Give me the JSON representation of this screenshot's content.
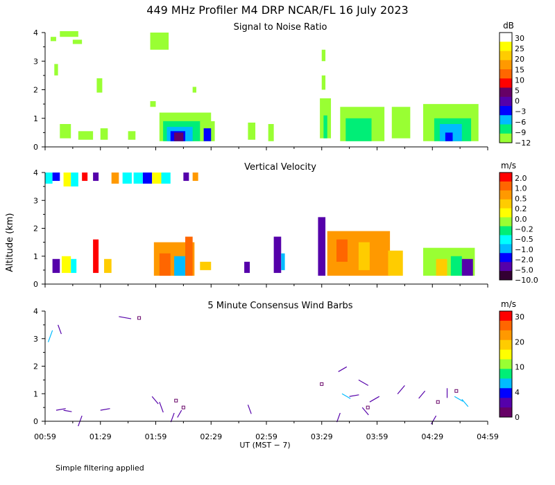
{
  "title": "449 MHz Profiler M4 DRP NCAR/FL 16 July 2023",
  "x_axis": {
    "label": "UT  (MST − 7)",
    "ticks": [
      "00:59",
      "01:29",
      "01:59",
      "02:29",
      "02:59",
      "03:29",
      "03:59",
      "04:29",
      "04:59"
    ]
  },
  "y_axis_label": "Altitude (km)",
  "y_ticks": [
    "0",
    "1",
    "2",
    "3",
    "4"
  ],
  "footnote": "Simple filtering applied",
  "chart_data": [
    {
      "type": "heatmap",
      "title": "Signal to Noise Ratio",
      "xlim": [
        0,
        240
      ],
      "ylim": [
        0,
        4
      ],
      "colorbar": {
        "unit": "dB",
        "labels": [
          "30",
          "25",
          "20",
          "15",
          "10",
          "5",
          "0",
          "−3",
          "−6",
          "−9",
          "−12"
        ],
        "colors": [
          "#ffffff",
          "#ffff00",
          "#ffcc00",
          "#ff9900",
          "#ff6600",
          "#ff0000",
          "#660066",
          "#5500aa",
          "#0000ff",
          "#00bbff",
          "#00ee77",
          "#99ff33"
        ]
      },
      "cells": [
        {
          "t": 3,
          "h": 3.7,
          "w": 3,
          "hh": 0.15,
          "c": "#99ff33"
        },
        {
          "t": 8,
          "h": 3.85,
          "w": 10,
          "hh": 0.2,
          "c": "#99ff33"
        },
        {
          "t": 15,
          "h": 3.6,
          "w": 5,
          "hh": 0.15,
          "c": "#99ff33"
        },
        {
          "t": 5,
          "h": 2.5,
          "w": 2,
          "hh": 0.4,
          "c": "#99ff33"
        },
        {
          "t": 28,
          "h": 1.9,
          "w": 3,
          "hh": 0.5,
          "c": "#99ff33"
        },
        {
          "t": 57,
          "h": 3.4,
          "w": 10,
          "hh": 0.6,
          "c": "#99ff33"
        },
        {
          "t": 80,
          "h": 1.9,
          "w": 2,
          "hh": 0.2,
          "c": "#99ff33"
        },
        {
          "t": 57,
          "h": 1.4,
          "w": 3,
          "hh": 0.2,
          "c": "#99ff33"
        },
        {
          "t": 150,
          "h": 2.0,
          "w": 2,
          "hh": 0.5,
          "c": "#99ff33"
        },
        {
          "t": 150,
          "h": 3.0,
          "w": 2,
          "hh": 0.4,
          "c": "#99ff33"
        },
        {
          "t": 8,
          "h": 0.3,
          "w": 6,
          "hh": 0.5,
          "c": "#99ff33"
        },
        {
          "t": 18,
          "h": 0.25,
          "w": 8,
          "hh": 0.3,
          "c": "#99ff33"
        },
        {
          "t": 30,
          "h": 0.25,
          "w": 4,
          "hh": 0.4,
          "c": "#99ff33"
        },
        {
          "t": 45,
          "h": 0.25,
          "w": 4,
          "hh": 0.3,
          "c": "#99ff33"
        },
        {
          "t": 62,
          "h": 0.2,
          "w": 28,
          "hh": 1.0,
          "c": "#99ff33"
        },
        {
          "t": 64,
          "h": 0.2,
          "w": 22,
          "hh": 0.7,
          "c": "#00ee77"
        },
        {
          "t": 66,
          "h": 0.2,
          "w": 14,
          "hh": 0.5,
          "c": "#00bbff"
        },
        {
          "t": 68,
          "h": 0.2,
          "w": 8,
          "hh": 0.35,
          "c": "#0000ff"
        },
        {
          "t": 70,
          "h": 0.2,
          "w": 5,
          "hh": 0.3,
          "c": "#660066"
        },
        {
          "t": 84,
          "h": 0.2,
          "w": 8,
          "hh": 0.7,
          "c": "#99ff33"
        },
        {
          "t": 86,
          "h": 0.2,
          "w": 4,
          "hh": 0.45,
          "c": "#0000ff"
        },
        {
          "t": 110,
          "h": 0.25,
          "w": 4,
          "hh": 0.6,
          "c": "#99ff33"
        },
        {
          "t": 121,
          "h": 0.2,
          "w": 3,
          "hh": 0.6,
          "c": "#99ff33"
        },
        {
          "t": 149,
          "h": 0.3,
          "w": 6,
          "hh": 1.4,
          "c": "#99ff33"
        },
        {
          "t": 151,
          "h": 0.3,
          "w": 2,
          "hh": 0.8,
          "c": "#00ee77"
        },
        {
          "t": 160,
          "h": 0.2,
          "w": 24,
          "hh": 1.2,
          "c": "#99ff33"
        },
        {
          "t": 163,
          "h": 0.2,
          "w": 14,
          "hh": 0.8,
          "c": "#00ee77"
        },
        {
          "t": 188,
          "h": 0.3,
          "w": 10,
          "hh": 1.1,
          "c": "#99ff33"
        },
        {
          "t": 205,
          "h": 0.2,
          "w": 30,
          "hh": 1.3,
          "c": "#99ff33"
        },
        {
          "t": 211,
          "h": 0.2,
          "w": 20,
          "hh": 0.8,
          "c": "#00ee77"
        },
        {
          "t": 214,
          "h": 0.2,
          "w": 12,
          "hh": 0.6,
          "c": "#00bbff"
        },
        {
          "t": 217,
          "h": 0.2,
          "w": 4,
          "hh": 0.3,
          "c": "#0000ff"
        }
      ]
    },
    {
      "type": "heatmap",
      "title": "Vertical Velocity",
      "xlim": [
        0,
        240
      ],
      "ylim": [
        0,
        4
      ],
      "colorbar": {
        "unit": "m/s",
        "labels": [
          "2.0",
          "1.0",
          "0.5",
          "0.2",
          "0.0",
          "−0.2",
          "−0.5",
          "−1.0",
          "−2.0",
          "−5.0",
          "−10.0"
        ],
        "colors": [
          "#ff0000",
          "#ff6600",
          "#ff9900",
          "#ffcc00",
          "#ffff00",
          "#99ff33",
          "#00ee77",
          "#00ffff",
          "#00bbff",
          "#0000ff",
          "#5500aa",
          "#330033"
        ]
      },
      "cells": [
        {
          "t": 0,
          "h": 3.6,
          "w": 4,
          "hh": 0.4,
          "c": "#00ffff"
        },
        {
          "t": 4,
          "h": 3.7,
          "w": 4,
          "hh": 0.3,
          "c": "#0000ff"
        },
        {
          "t": 10,
          "h": 3.5,
          "w": 4,
          "hh": 0.5,
          "c": "#ffff00"
        },
        {
          "t": 14,
          "h": 3.5,
          "w": 4,
          "hh": 0.5,
          "c": "#00ffff"
        },
        {
          "t": 20,
          "h": 3.7,
          "w": 3,
          "hh": 0.3,
          "c": "#ff0000"
        },
        {
          "t": 26,
          "h": 3.7,
          "w": 3,
          "hh": 0.3,
          "c": "#5500aa"
        },
        {
          "t": 36,
          "h": 3.6,
          "w": 4,
          "hh": 0.4,
          "c": "#ff9900"
        },
        {
          "t": 42,
          "h": 3.6,
          "w": 5,
          "hh": 0.4,
          "c": "#00ffff"
        },
        {
          "t": 48,
          "h": 3.6,
          "w": 5,
          "hh": 0.4,
          "c": "#00ffff"
        },
        {
          "t": 53,
          "h": 3.6,
          "w": 5,
          "hh": 0.4,
          "c": "#0000ff"
        },
        {
          "t": 58,
          "h": 3.6,
          "w": 5,
          "hh": 0.4,
          "c": "#ffff00"
        },
        {
          "t": 63,
          "h": 3.6,
          "w": 5,
          "hh": 0.4,
          "c": "#00ffff"
        },
        {
          "t": 75,
          "h": 3.7,
          "w": 3,
          "hh": 0.3,
          "c": "#5500aa"
        },
        {
          "t": 80,
          "h": 3.7,
          "w": 3,
          "hh": 0.3,
          "c": "#ff9900"
        },
        {
          "t": 4,
          "h": 0.4,
          "w": 4,
          "hh": 0.5,
          "c": "#5500aa"
        },
        {
          "t": 9,
          "h": 0.4,
          "w": 5,
          "hh": 0.6,
          "c": "#ffff00"
        },
        {
          "t": 14,
          "h": 0.4,
          "w": 3,
          "hh": 0.5,
          "c": "#00ffff"
        },
        {
          "t": 26,
          "h": 0.4,
          "w": 3,
          "hh": 1.2,
          "c": "#ff0000"
        },
        {
          "t": 32,
          "h": 0.4,
          "w": 4,
          "hh": 0.5,
          "c": "#ffcc00"
        },
        {
          "t": 59,
          "h": 0.3,
          "w": 22,
          "hh": 1.2,
          "c": "#ff9900"
        },
        {
          "t": 62,
          "h": 0.3,
          "w": 6,
          "hh": 0.8,
          "c": "#ff6600"
        },
        {
          "t": 70,
          "h": 0.3,
          "w": 6,
          "hh": 0.7,
          "c": "#00bbff"
        },
        {
          "t": 76,
          "h": 0.3,
          "w": 4,
          "hh": 1.4,
          "c": "#ff6600"
        },
        {
          "t": 84,
          "h": 0.5,
          "w": 6,
          "hh": 0.3,
          "c": "#ffcc00"
        },
        {
          "t": 108,
          "h": 0.4,
          "w": 3,
          "hh": 0.4,
          "c": "#5500aa"
        },
        {
          "t": 124,
          "h": 0.4,
          "w": 4,
          "hh": 1.3,
          "c": "#5500aa"
        },
        {
          "t": 128,
          "h": 0.5,
          "w": 2,
          "hh": 0.6,
          "c": "#00bbff"
        },
        {
          "t": 148,
          "h": 0.3,
          "w": 4,
          "hh": 2.1,
          "c": "#5500aa"
        },
        {
          "t": 153,
          "h": 0.3,
          "w": 34,
          "hh": 1.6,
          "c": "#ff9900"
        },
        {
          "t": 158,
          "h": 0.8,
          "w": 6,
          "hh": 0.8,
          "c": "#ff6600"
        },
        {
          "t": 170,
          "h": 0.5,
          "w": 6,
          "hh": 1.0,
          "c": "#ffcc00"
        },
        {
          "t": 186,
          "h": 0.3,
          "w": 8,
          "hh": 0.9,
          "c": "#ffcc00"
        },
        {
          "t": 205,
          "h": 0.3,
          "w": 28,
          "hh": 1.0,
          "c": "#99ff33"
        },
        {
          "t": 212,
          "h": 0.3,
          "w": 6,
          "hh": 0.6,
          "c": "#ffcc00"
        },
        {
          "t": 220,
          "h": 0.3,
          "w": 6,
          "hh": 0.7,
          "c": "#00ee77"
        },
        {
          "t": 226,
          "h": 0.3,
          "w": 6,
          "hh": 0.6,
          "c": "#5500aa"
        }
      ]
    },
    {
      "type": "scatter",
      "title": "5 Minute Consensus Wind Barbs",
      "xlim": [
        0,
        240
      ],
      "ylim": [
        0,
        4
      ],
      "colorbar": {
        "unit": "m/s",
        "labels": [
          "30",
          "20",
          "10",
          "4",
          "0"
        ],
        "colors": [
          "#ff0000",
          "#ff6600",
          "#ff9900",
          "#ffcc00",
          "#ffff00",
          "#99ff33",
          "#00ee77",
          "#00bbff",
          "#0000ff",
          "#5500aa",
          "#660066"
        ]
      },
      "barbs": [
        {
          "t": 4,
          "h": 3.3,
          "dir": 200,
          "len": 18,
          "c": "#00bbff"
        },
        {
          "t": 7,
          "h": 3.5,
          "dir": 160,
          "len": 14,
          "c": "#5500aa"
        },
        {
          "t": 40,
          "h": 3.8,
          "dir": 100,
          "len": 18,
          "c": "#5500aa"
        },
        {
          "t": 6,
          "h": 0.4,
          "dir": 80,
          "len": 14,
          "c": "#5500aa"
        },
        {
          "t": 10,
          "h": 0.4,
          "dir": 100,
          "len": 12,
          "c": "#5500aa"
        },
        {
          "t": 20,
          "h": 0.2,
          "dir": 200,
          "len": 16,
          "c": "#5500aa"
        },
        {
          "t": 30,
          "h": 0.4,
          "dir": 80,
          "len": 14,
          "c": "#5500aa"
        },
        {
          "t": 58,
          "h": 0.9,
          "dir": 140,
          "len": 14,
          "c": "#5500aa"
        },
        {
          "t": 62,
          "h": 0.7,
          "dir": 160,
          "len": 16,
          "c": "#5500aa"
        },
        {
          "t": 70,
          "h": 0.3,
          "dir": 200,
          "len": 14,
          "c": "#5500aa"
        },
        {
          "t": 74,
          "h": 0.4,
          "dir": 210,
          "len": 12,
          "c": "#5500aa"
        },
        {
          "t": 110,
          "h": 0.6,
          "dir": 160,
          "len": 14,
          "c": "#5500aa"
        },
        {
          "t": 159,
          "h": 1.8,
          "dir": 60,
          "len": 14,
          "c": "#5500aa"
        },
        {
          "t": 161,
          "h": 1.0,
          "dir": 120,
          "len": 14,
          "c": "#00bbff"
        },
        {
          "t": 165,
          "h": 0.9,
          "dir": 80,
          "len": 14,
          "c": "#5500aa"
        },
        {
          "t": 170,
          "h": 1.5,
          "dir": 120,
          "len": 16,
          "c": "#5500aa"
        },
        {
          "t": 176,
          "h": 0.7,
          "dir": 60,
          "len": 16,
          "c": "#5500aa"
        },
        {
          "t": 172,
          "h": 0.5,
          "dir": 140,
          "len": 14,
          "c": "#5500aa"
        },
        {
          "t": 160,
          "h": 0.3,
          "dir": 200,
          "len": 14,
          "c": "#5500aa"
        },
        {
          "t": 195,
          "h": 1.3,
          "dir": 220,
          "len": 16,
          "c": "#5500aa"
        },
        {
          "t": 206,
          "h": 1.1,
          "dir": 220,
          "len": 14,
          "c": "#5500aa"
        },
        {
          "t": 218,
          "h": 1.2,
          "dir": 180,
          "len": 14,
          "c": "#5500aa"
        },
        {
          "t": 222,
          "h": 0.9,
          "dir": 120,
          "len": 14,
          "c": "#00bbff"
        },
        {
          "t": 226,
          "h": 0.8,
          "dir": 140,
          "len": 14,
          "c": "#00bbff"
        },
        {
          "t": 212,
          "h": 0.2,
          "dir": 210,
          "len": 14,
          "c": "#5500aa"
        }
      ],
      "calm": [
        {
          "t": 51,
          "h": 3.75
        },
        {
          "t": 71,
          "h": 0.75
        },
        {
          "t": 75,
          "h": 0.5
        },
        {
          "t": 150,
          "h": 1.35
        },
        {
          "t": 175,
          "h": 0.5
        },
        {
          "t": 213,
          "h": 0.7
        },
        {
          "t": 223,
          "h": 1.1
        }
      ]
    }
  ]
}
